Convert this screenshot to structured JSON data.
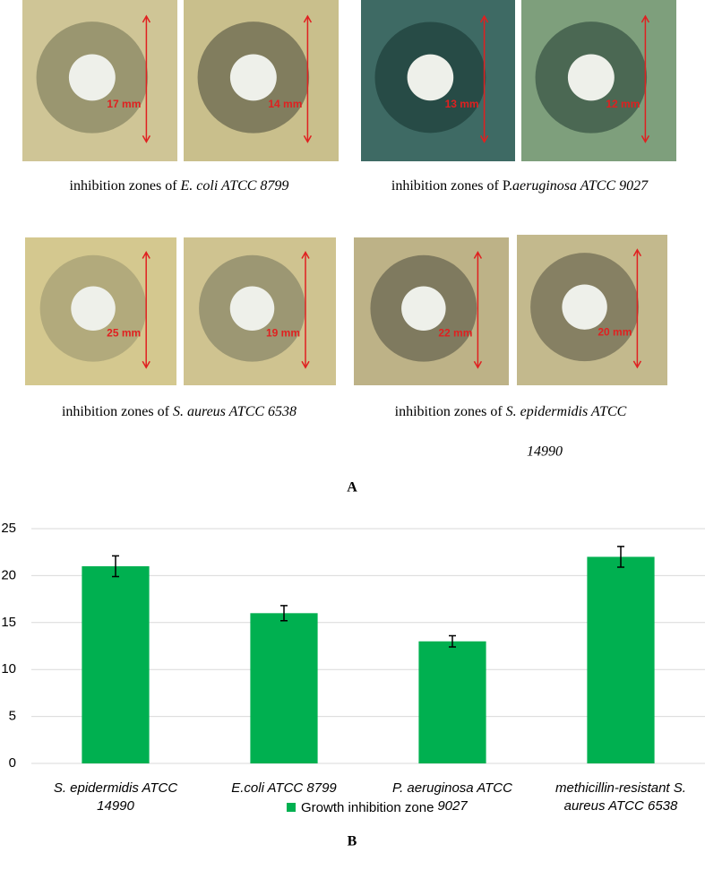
{
  "panel_a": {
    "label": "A",
    "groups": [
      {
        "caption": {
          "prefix": "inhibition zones of ",
          "italic": "E. coli ATCC 8799"
        },
        "photos": [
          {
            "zone_label": "17 mm"
          },
          {
            "zone_label": "14 mm"
          }
        ]
      },
      {
        "caption": {
          "prefix": "inhibition zones of P.",
          "italic": "aeruginosa ATCC 9027"
        },
        "photos": [
          {
            "zone_label": "13 mm"
          },
          {
            "zone_label": "12 mm"
          }
        ]
      },
      {
        "caption": {
          "prefix": "inhibition zones of ",
          "italic": "S. aureus ATCC 6538"
        },
        "photos": [
          {
            "zone_label": "25 mm"
          },
          {
            "zone_label": "19 mm"
          }
        ]
      },
      {
        "caption": {
          "prefix": "inhibition zones of ",
          "italic": "S. epidermidis ATCC",
          "second_line": "14990"
        },
        "photos": [
          {
            "zone_label": "22 mm"
          },
          {
            "zone_label": "20 mm"
          }
        ]
      }
    ]
  },
  "chart_data": {
    "type": "bar",
    "panel_label": "B",
    "categories": [
      [
        "S. epidermidis ATCC",
        "14990"
      ],
      [
        "E.coli ATCC 8799"
      ],
      [
        "P. aeruginosa ATCC",
        "9027"
      ],
      [
        "methicillin-resistant S.",
        "aureus ATCC 6538"
      ]
    ],
    "series": [
      {
        "name": "Growth inhibition zone",
        "color": "#00b050",
        "values": [
          21,
          16,
          13,
          22
        ],
        "errors": [
          1.1,
          0.8,
          0.6,
          1.1
        ]
      }
    ],
    "ylim": [
      0,
      25
    ],
    "yticks": [
      0,
      5,
      10,
      15,
      20,
      25
    ],
    "grid": true,
    "legend": "bottom"
  }
}
